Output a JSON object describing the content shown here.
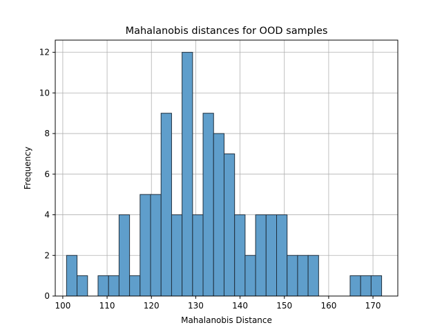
{
  "chart_data": {
    "type": "bar",
    "subtype": "histogram",
    "title": "Mahalanobis distances for OOD samples",
    "xlabel": "Mahalanobis Distance",
    "ylabel": "Frequency",
    "xlim": [
      98.3,
      175.6
    ],
    "ylim": [
      0,
      12.6
    ],
    "xticks": [
      100,
      110,
      120,
      130,
      140,
      150,
      160,
      170
    ],
    "yticks": [
      0,
      2,
      4,
      6,
      8,
      10,
      12
    ],
    "grid": true,
    "bar_color": "#5f9ecb",
    "edge_color": "#1f2f3d",
    "bins": {
      "start": 100.85,
      "width": 2.37,
      "counts": [
        2,
        1,
        0,
        1,
        1,
        4,
        1,
        5,
        5,
        9,
        4,
        12,
        4,
        9,
        8,
        7,
        4,
        2,
        4,
        4,
        4,
        2,
        2,
        2,
        0,
        0,
        0,
        1,
        1,
        1
      ]
    }
  }
}
